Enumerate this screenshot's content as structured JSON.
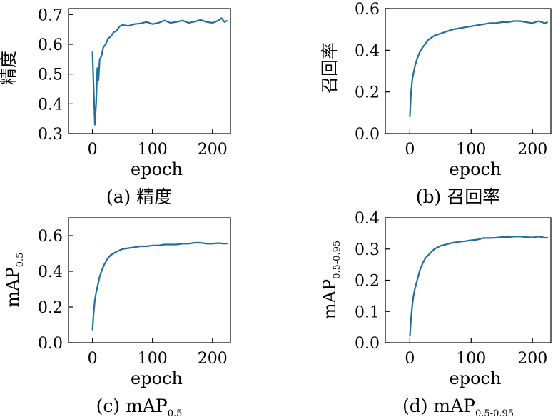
{
  "chart_data": [
    {
      "type": "line",
      "panel": "a",
      "caption_prefix": "(a)",
      "caption_text": "精度",
      "caption_sub": "",
      "ylabel": "精度",
      "ylabel_sub": "",
      "xlabel": "epoch",
      "xlim": [
        -40,
        230
      ],
      "ylim": [
        0.3,
        0.72
      ],
      "xticks": [
        0,
        100,
        200
      ],
      "yticks": [
        0.3,
        0.4,
        0.5,
        0.6,
        0.7
      ],
      "ytick_labels": [
        "0.3",
        "0.4",
        "0.5",
        "0.6",
        "0.7"
      ],
      "color": "#1f6f9f",
      "points": [
        [
          0,
          0.575
        ],
        [
          2,
          0.45
        ],
        [
          4,
          0.33
        ],
        [
          6,
          0.4
        ],
        [
          8,
          0.52
        ],
        [
          10,
          0.48
        ],
        [
          12,
          0.55
        ],
        [
          15,
          0.56
        ],
        [
          18,
          0.59
        ],
        [
          22,
          0.6
        ],
        [
          26,
          0.62
        ],
        [
          30,
          0.625
        ],
        [
          35,
          0.64
        ],
        [
          40,
          0.645
        ],
        [
          45,
          0.66
        ],
        [
          50,
          0.665
        ],
        [
          60,
          0.662
        ],
        [
          70,
          0.668
        ],
        [
          80,
          0.67
        ],
        [
          90,
          0.675
        ],
        [
          100,
          0.668
        ],
        [
          110,
          0.672
        ],
        [
          120,
          0.68
        ],
        [
          130,
          0.672
        ],
        [
          140,
          0.675
        ],
        [
          150,
          0.68
        ],
        [
          160,
          0.672
        ],
        [
          170,
          0.676
        ],
        [
          180,
          0.682
        ],
        [
          190,
          0.675
        ],
        [
          200,
          0.672
        ],
        [
          210,
          0.68
        ],
        [
          215,
          0.688
        ],
        [
          220,
          0.675
        ],
        [
          225,
          0.68
        ]
      ]
    },
    {
      "type": "line",
      "panel": "b",
      "caption_prefix": "(b)",
      "caption_text": "召回率",
      "caption_sub": "",
      "ylabel": "召回率",
      "ylabel_sub": "",
      "xlabel": "epoch",
      "xlim": [
        -40,
        230
      ],
      "ylim": [
        0.0,
        0.6
      ],
      "xticks": [
        0,
        100,
        200
      ],
      "yticks": [
        0.0,
        0.2,
        0.4,
        0.6
      ],
      "ytick_labels": [
        "0.0",
        "0.2",
        "0.4",
        "0.6"
      ],
      "color": "#1f6f9f",
      "points": [
        [
          0,
          0.08
        ],
        [
          2,
          0.2
        ],
        [
          4,
          0.26
        ],
        [
          6,
          0.29
        ],
        [
          8,
          0.32
        ],
        [
          12,
          0.36
        ],
        [
          16,
          0.39
        ],
        [
          20,
          0.41
        ],
        [
          25,
          0.43
        ],
        [
          30,
          0.45
        ],
        [
          35,
          0.46
        ],
        [
          40,
          0.47
        ],
        [
          50,
          0.48
        ],
        [
          60,
          0.49
        ],
        [
          70,
          0.5
        ],
        [
          80,
          0.505
        ],
        [
          90,
          0.51
        ],
        [
          100,
          0.515
        ],
        [
          110,
          0.52
        ],
        [
          120,
          0.525
        ],
        [
          130,
          0.53
        ],
        [
          140,
          0.53
        ],
        [
          150,
          0.535
        ],
        [
          160,
          0.535
        ],
        [
          170,
          0.54
        ],
        [
          180,
          0.54
        ],
        [
          190,
          0.535
        ],
        [
          200,
          0.53
        ],
        [
          210,
          0.54
        ],
        [
          220,
          0.53
        ],
        [
          225,
          0.535
        ]
      ]
    },
    {
      "type": "line",
      "panel": "c",
      "caption_prefix": "(c)",
      "caption_text": "mAP",
      "caption_sub": "0.5",
      "ylabel": "mAP",
      "ylabel_sub": "0.5",
      "xlabel": "epoch",
      "xlim": [
        -40,
        230
      ],
      "ylim": [
        0.0,
        0.7
      ],
      "xticks": [
        0,
        100,
        200
      ],
      "yticks": [
        0.0,
        0.2,
        0.4,
        0.6
      ],
      "ytick_labels": [
        "0.0",
        "0.2",
        "0.4",
        "0.6"
      ],
      "color": "#1f6f9f",
      "points": [
        [
          0,
          0.07
        ],
        [
          2,
          0.17
        ],
        [
          4,
          0.24
        ],
        [
          6,
          0.28
        ],
        [
          8,
          0.31
        ],
        [
          12,
          0.37
        ],
        [
          16,
          0.41
        ],
        [
          20,
          0.44
        ],
        [
          25,
          0.47
        ],
        [
          30,
          0.49
        ],
        [
          35,
          0.5
        ],
        [
          40,
          0.51
        ],
        [
          50,
          0.525
        ],
        [
          60,
          0.53
        ],
        [
          70,
          0.535
        ],
        [
          80,
          0.54
        ],
        [
          90,
          0.54
        ],
        [
          100,
          0.545
        ],
        [
          110,
          0.545
        ],
        [
          120,
          0.55
        ],
        [
          130,
          0.55
        ],
        [
          140,
          0.55
        ],
        [
          150,
          0.555
        ],
        [
          160,
          0.555
        ],
        [
          170,
          0.56
        ],
        [
          180,
          0.56
        ],
        [
          190,
          0.555
        ],
        [
          200,
          0.555
        ],
        [
          210,
          0.558
        ],
        [
          220,
          0.555
        ],
        [
          225,
          0.556
        ]
      ]
    },
    {
      "type": "line",
      "panel": "d",
      "caption_prefix": "(d)",
      "caption_text": "mAP",
      "caption_sub": "0.5-0.95",
      "ylabel": "mAP",
      "ylabel_sub": "0.5-0.95",
      "xlabel": "epoch",
      "xlim": [
        -40,
        230
      ],
      "ylim": [
        0.0,
        0.4
      ],
      "xticks": [
        0,
        100,
        200
      ],
      "yticks": [
        0.0,
        0.1,
        0.2,
        0.3,
        0.4
      ],
      "ytick_labels": [
        "0.0",
        "0.1",
        "0.2",
        "0.3",
        "0.4"
      ],
      "color": "#1f6f9f",
      "points": [
        [
          0,
          0.02
        ],
        [
          2,
          0.08
        ],
        [
          4,
          0.12
        ],
        [
          6,
          0.15
        ],
        [
          8,
          0.17
        ],
        [
          12,
          0.2
        ],
        [
          16,
          0.23
        ],
        [
          20,
          0.25
        ],
        [
          25,
          0.27
        ],
        [
          30,
          0.28
        ],
        [
          35,
          0.29
        ],
        [
          40,
          0.3
        ],
        [
          50,
          0.31
        ],
        [
          60,
          0.315
        ],
        [
          70,
          0.32
        ],
        [
          80,
          0.323
        ],
        [
          90,
          0.325
        ],
        [
          100,
          0.328
        ],
        [
          110,
          0.33
        ],
        [
          120,
          0.335
        ],
        [
          130,
          0.335
        ],
        [
          140,
          0.336
        ],
        [
          150,
          0.338
        ],
        [
          160,
          0.338
        ],
        [
          170,
          0.34
        ],
        [
          180,
          0.34
        ],
        [
          190,
          0.338
        ],
        [
          200,
          0.337
        ],
        [
          210,
          0.34
        ],
        [
          220,
          0.336
        ],
        [
          225,
          0.336
        ]
      ]
    }
  ]
}
